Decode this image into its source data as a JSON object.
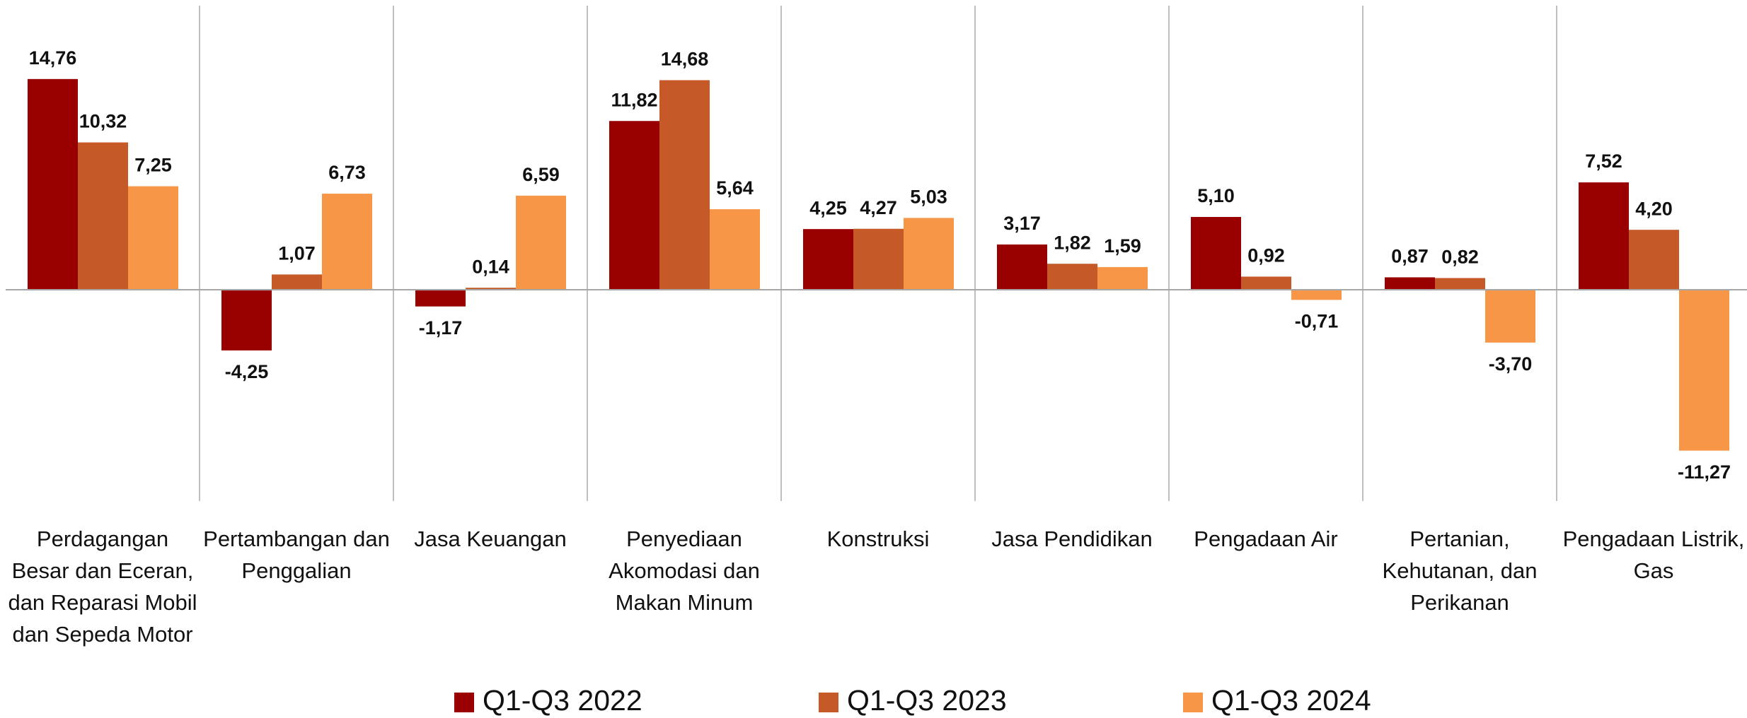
{
  "chart_data": {
    "type": "bar",
    "categories": [
      "Perdagangan Besar dan Eceran, dan Reparasi Mobil dan Sepeda Motor",
      "Pertambangan dan Penggalian",
      "Jasa Keuangan",
      "Penyediaan Akomodasi dan Makan Minum",
      "Konstruksi",
      "Jasa Pendidikan",
      "Pengadaan Air",
      "Pertanian, Kehutanan, dan Perikanan",
      "Pengadaan Listrik, Gas"
    ],
    "series": [
      {
        "name": "Q1-Q3 2022",
        "color": "#990000",
        "values": [
          14.76,
          -4.25,
          -1.17,
          11.82,
          4.25,
          3.17,
          5.1,
          0.87,
          7.52
        ],
        "value_labels": [
          "14,76",
          "-4,25",
          "-1,17",
          "11,82",
          "4,25",
          "3,17",
          "5,10",
          "0,87",
          "7,52"
        ]
      },
      {
        "name": "Q1-Q3 2023",
        "color": "#c55a28",
        "values": [
          10.32,
          1.07,
          0.14,
          14.68,
          4.27,
          1.82,
          0.92,
          0.82,
          4.2
        ],
        "value_labels": [
          "10,32",
          "1,07",
          "0,14",
          "14,68",
          "4,27",
          "1,82",
          "0,92",
          "0,82",
          "4,20"
        ]
      },
      {
        "name": "Q1-Q3 2024",
        "color": "#f79646",
        "values": [
          7.25,
          6.73,
          6.59,
          5.64,
          5.03,
          1.59,
          -0.71,
          -3.7,
          -11.27
        ],
        "value_labels": [
          "7,25",
          "6,73",
          "6,59",
          "5,64",
          "5,03",
          "1,59",
          "-0,71",
          "-3,70",
          "-11,27"
        ]
      }
    ],
    "ylim": [
      -14.8,
      19.9
    ],
    "legend": "bottom"
  }
}
